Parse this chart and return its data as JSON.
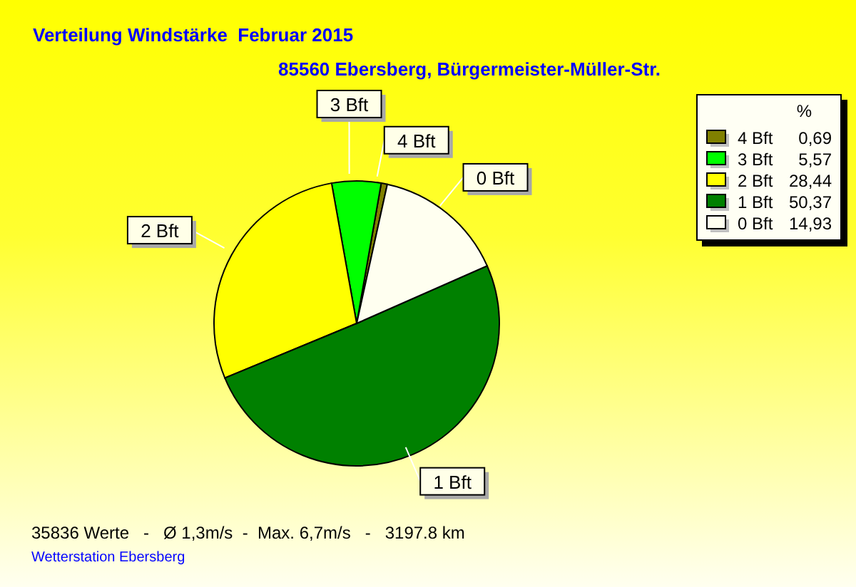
{
  "chart_data": {
    "type": "pie",
    "title": "Verteilung Windstärke  Februar 2015",
    "subtitle": "85560 Ebersberg, Bürgermeister-Müller-Str.",
    "legend_title": "%",
    "categories": [
      "4 Bft",
      "3 Bft",
      "2 Bft",
      "1 Bft",
      "0 Bft"
    ],
    "values": [
      0.69,
      5.57,
      28.44,
      50.37,
      14.93
    ],
    "value_labels": [
      "0,69",
      "5,57",
      "28,44",
      "50,37",
      "14,93"
    ],
    "colors": [
      "#808000",
      "#00ff00",
      "#ffff00",
      "#008000",
      "#fffff0"
    ],
    "legend": "top right",
    "annotations": [
      "35836 Werte   -   Ø 1,3m/s  -  Max. 6,7m/s   -   3197.8 km",
      "Wetterstation Ebersberg"
    ]
  }
}
